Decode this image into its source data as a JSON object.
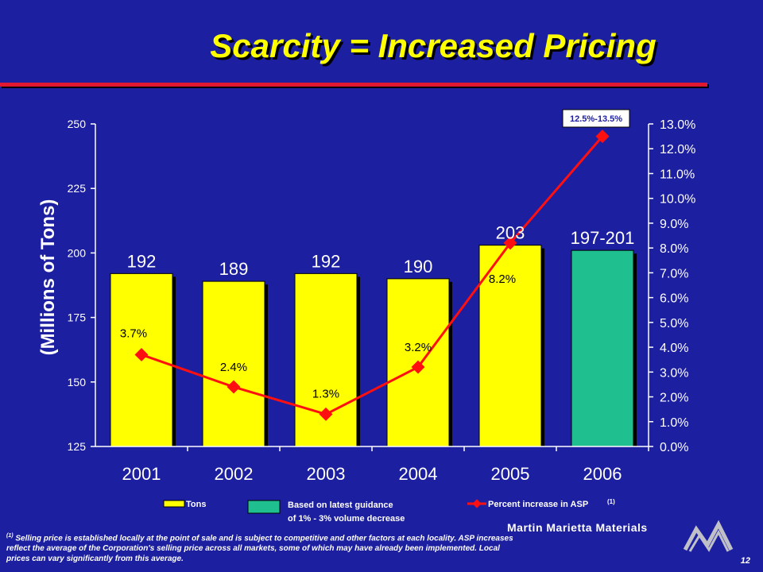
{
  "slide": {
    "title": "Scarcity = Increased Pricing",
    "page_number": "12",
    "footnote_marker": "(1)",
    "footnote": "Selling price is established locally at the point of sale and is subject to competitive and other factors at each locality. ASP increases reflect the average of the Corporation's selling price across all markets, some of which may have already been implemented. Local prices can vary significantly from this average.",
    "company_name": "Martin Marietta Materials"
  },
  "colors": {
    "background": "#1c1fa0",
    "title": "#ffff00",
    "bar_actual": "#ffff00",
    "bar_guidance": "#1fbf90",
    "line": "#ff1010",
    "rule": "#e01830"
  },
  "chart_data": {
    "type": "bar",
    "categories": [
      "2001",
      "2002",
      "2003",
      "2004",
      "2005",
      "2006"
    ],
    "ylabel": "(Millions of Tons)",
    "ylim": [
      125,
      250
    ],
    "yticks": [
      125,
      150,
      175,
      200,
      225,
      250
    ],
    "y2lim": [
      0,
      13
    ],
    "y2ticks": [
      "0.0%",
      "1.0%",
      "2.0%",
      "3.0%",
      "4.0%",
      "5.0%",
      "6.0%",
      "7.0%",
      "8.0%",
      "9.0%",
      "10.0%",
      "11.0%",
      "12.0%",
      "13.0%"
    ],
    "grid": false,
    "series": [
      {
        "name": "Tons",
        "type": "bar",
        "axis": "left",
        "values": [
          192,
          189,
          192,
          190,
          203,
          201
        ],
        "labels": [
          "192",
          "189",
          "192",
          "190",
          "203",
          "197-201"
        ],
        "guidance_index": 5
      },
      {
        "name": "Percent increase in ASP",
        "name_marker": "(1)",
        "type": "line",
        "axis": "right",
        "values": [
          3.7,
          2.4,
          1.3,
          3.2,
          8.2,
          12.5
        ],
        "labels": [
          "3.7%",
          "2.4%",
          "1.3%",
          "3.2%",
          "8.2%",
          "12.5%-13.5%"
        ]
      }
    ],
    "legend": {
      "placement": "bottom",
      "tons_label": "Tons",
      "guidance_label_line1": "Based on latest guidance",
      "guidance_label_line2": "of 1% - 3% volume decrease",
      "asp_label": "Percent increase in ASP",
      "asp_marker": "(1)"
    }
  }
}
